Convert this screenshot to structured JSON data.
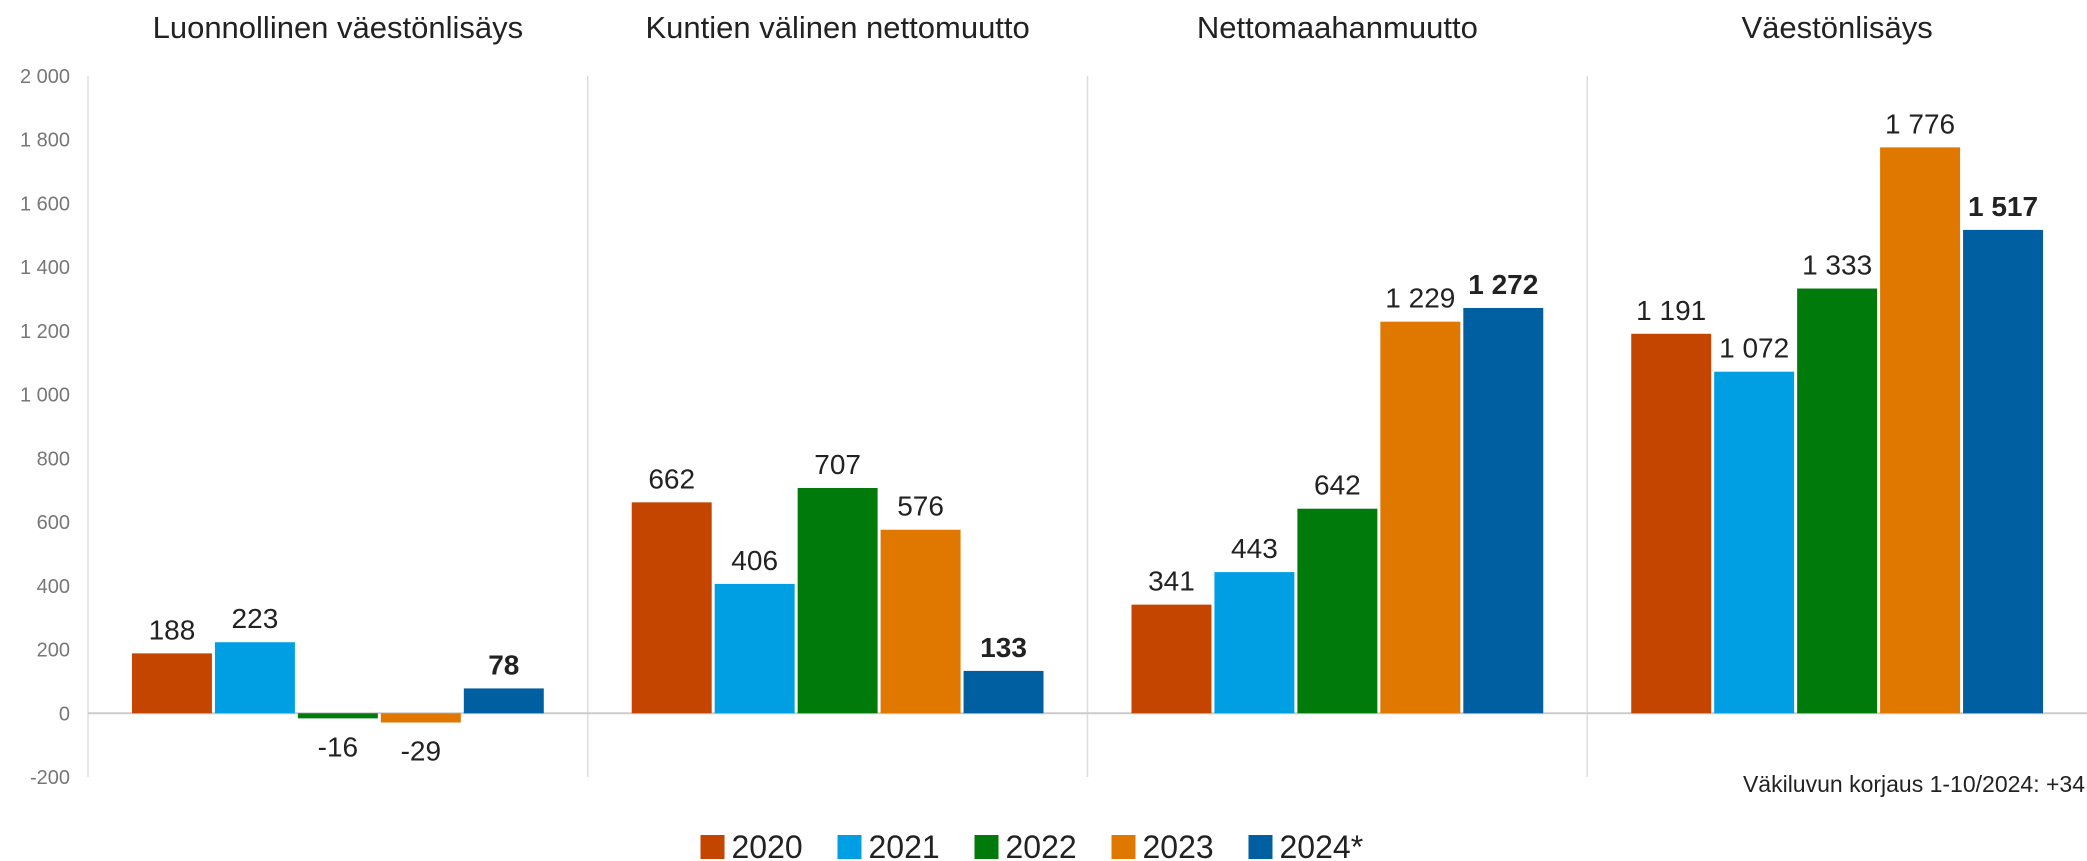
{
  "chart_data": {
    "type": "bar",
    "categories": [
      "Luonnollinen väestönlisäys",
      "Kuntien välinen nettomuutto",
      "Nettomaahanmuutto",
      "Väestönlisäys"
    ],
    "series": [
      {
        "name": "2020",
        "color": "#c44500",
        "values": [
          188,
          662,
          341,
          1191
        ],
        "value_labels": [
          "188",
          "662",
          "341",
          "1 191"
        ]
      },
      {
        "name": "2021",
        "color": "#009fe3",
        "values": [
          223,
          406,
          443,
          1072
        ],
        "value_labels": [
          "223",
          "406",
          "443",
          "1 072"
        ]
      },
      {
        "name": "2022",
        "color": "#007a0a",
        "values": [
          -16,
          707,
          642,
          1333
        ],
        "value_labels": [
          "-16",
          "707",
          "642",
          "1 333"
        ]
      },
      {
        "name": "2023",
        "color": "#e07800",
        "values": [
          -29,
          576,
          1229,
          1776
        ],
        "value_labels": [
          "-29",
          "576",
          "1 229",
          "1 776"
        ]
      },
      {
        "name": "2024*",
        "color": "#005fa0",
        "values": [
          78,
          133,
          1272,
          1517
        ],
        "value_labels": [
          "78",
          "133",
          "1 272",
          "1 517"
        ],
        "bold": true
      }
    ],
    "ylim": [
      -200,
      2000
    ],
    "yticks": [
      -200,
      0,
      200,
      400,
      600,
      800,
      {
        "value": 1000,
        "label": "1 000"
      },
      {
        "value": 1200,
        "label": "1 200"
      },
      {
        "value": 1400,
        "label": "1 400"
      },
      {
        "value": 1600,
        "label": "1 600"
      },
      {
        "value": 1800,
        "label": "1 800"
      },
      {
        "value": 2000,
        "label": "2 000"
      }
    ],
    "grid": false,
    "annotation": "Väkiluvun korjaus 1-10/2024: +34"
  }
}
